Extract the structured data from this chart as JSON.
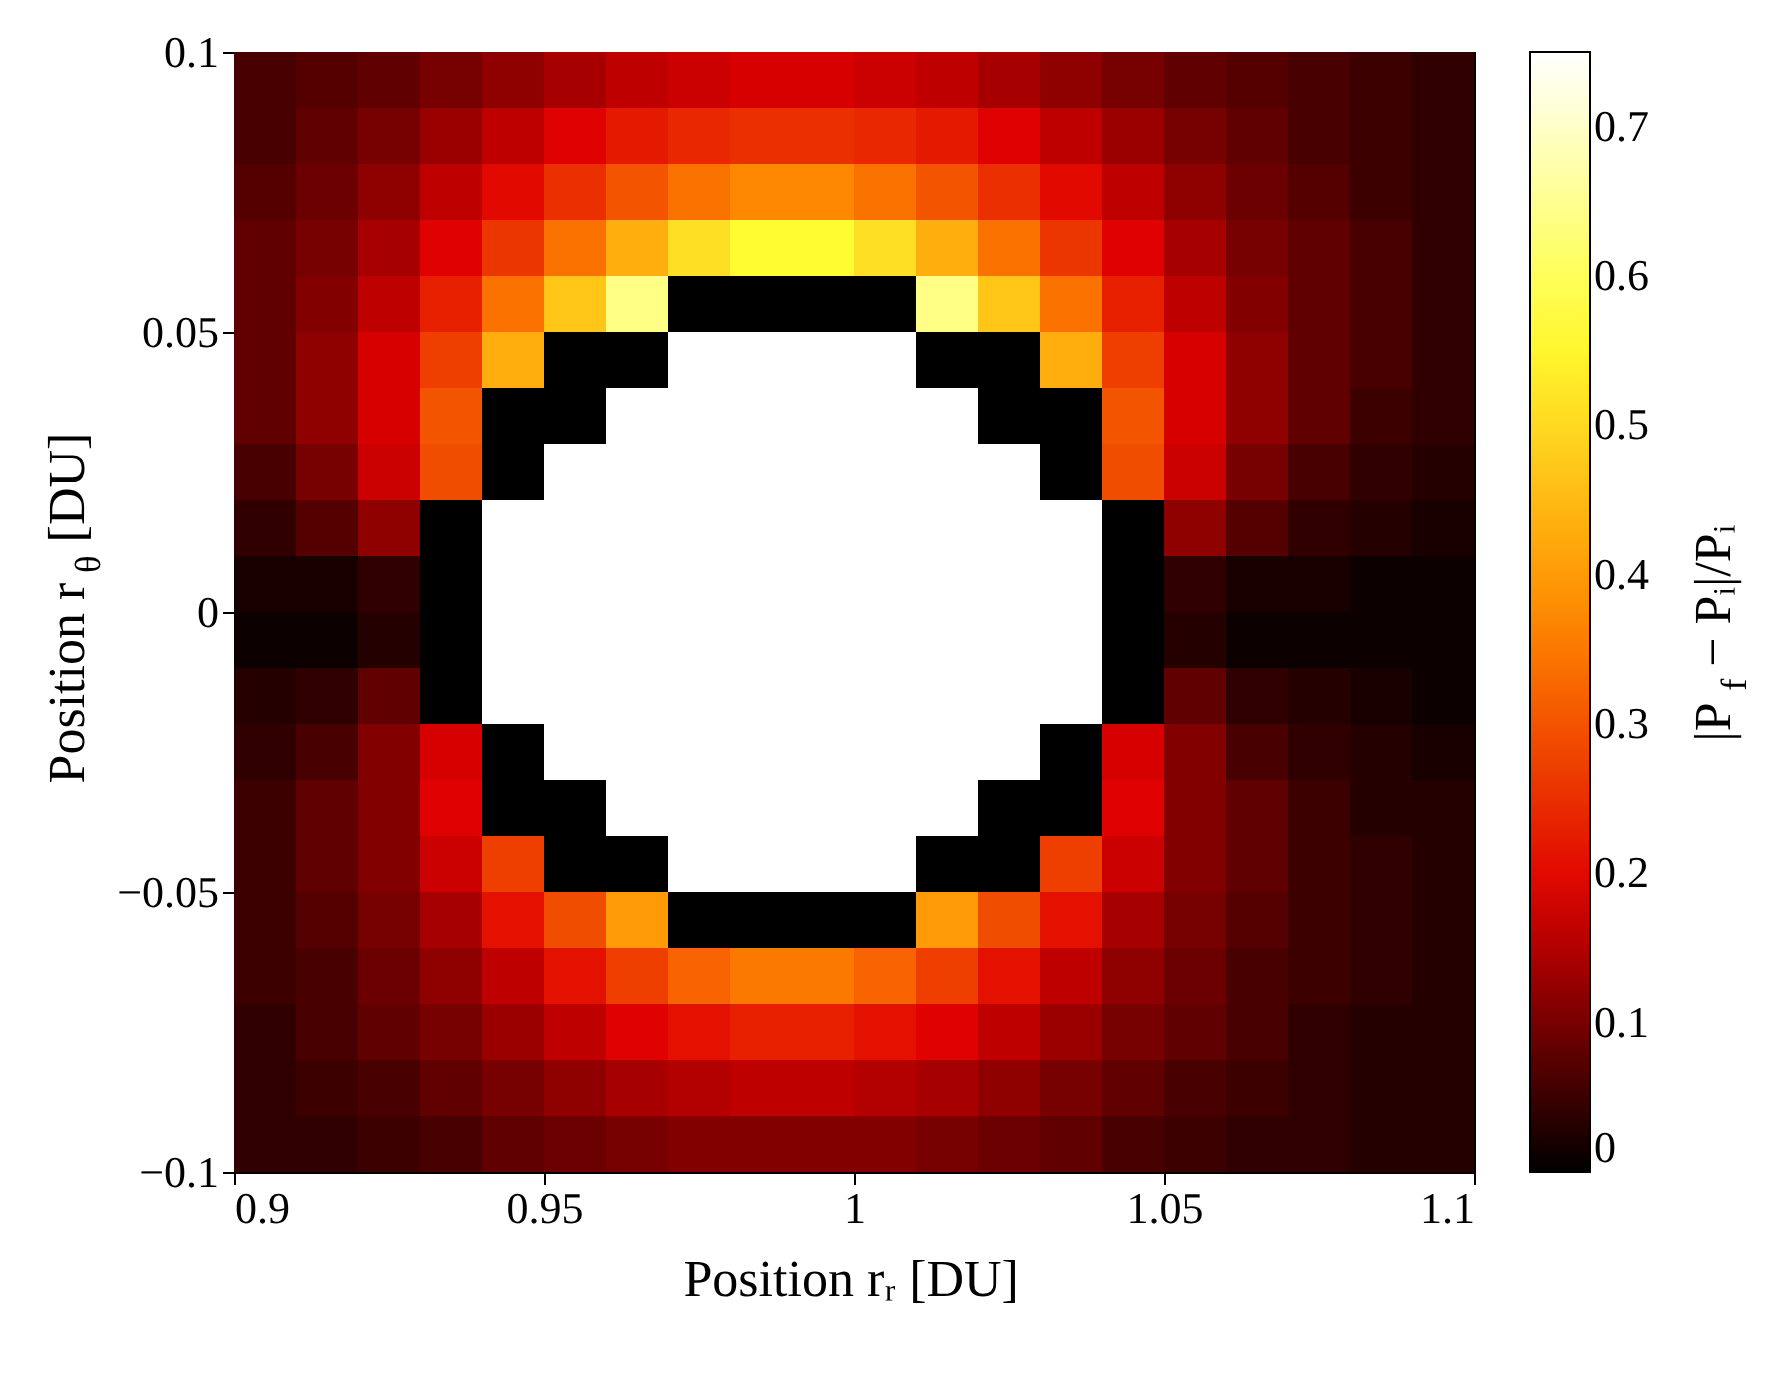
{
  "chart_data": {
    "type": "heatmap",
    "xlabel": "Position rᵣ [DU]",
    "ylabel": "Position r$_{θ}$ [DU]",
    "clabel": "|P$_{f}$ − Pᵢ|/Pᵢ",
    "x": [
      0.905,
      0.915,
      0.925,
      0.935,
      0.945,
      0.955,
      0.965,
      0.975,
      0.985,
      0.995,
      1.005,
      1.015,
      1.025,
      1.035,
      1.045,
      1.055,
      1.065,
      1.075,
      1.085,
      1.095
    ],
    "y": [
      0.095,
      0.085,
      0.075,
      0.065,
      0.055,
      0.045,
      0.035,
      0.025,
      0.015,
      0.005,
      -0.005,
      -0.015,
      -0.025,
      -0.035,
      -0.045,
      -0.055,
      -0.065,
      -0.075,
      -0.085,
      -0.095
    ],
    "cells": [
      [
        0.06,
        0.07,
        0.08,
        0.1,
        0.12,
        0.14,
        0.16,
        0.17,
        0.18,
        0.18,
        0.17,
        0.16,
        0.14,
        0.12,
        0.1,
        0.08,
        0.07,
        0.06,
        0.05,
        0.04
      ],
      [
        0.06,
        0.08,
        0.1,
        0.13,
        0.16,
        0.19,
        0.22,
        0.24,
        0.25,
        0.25,
        0.24,
        0.22,
        0.19,
        0.16,
        0.13,
        0.1,
        0.08,
        0.06,
        0.05,
        0.04
      ],
      [
        0.07,
        0.09,
        0.12,
        0.16,
        0.2,
        0.25,
        0.3,
        0.34,
        0.37,
        0.37,
        0.34,
        0.3,
        0.25,
        0.2,
        0.16,
        0.12,
        0.09,
        0.07,
        0.05,
        0.04
      ],
      [
        0.08,
        0.1,
        0.14,
        0.19,
        0.26,
        0.34,
        0.43,
        0.51,
        0.56,
        0.56,
        0.51,
        0.43,
        0.34,
        0.26,
        0.19,
        0.14,
        0.1,
        0.08,
        0.06,
        0.04
      ],
      [
        0.08,
        0.11,
        0.16,
        0.23,
        0.34,
        0.47,
        0.64,
        0,
        0,
        0,
        0,
        0.64,
        0.47,
        0.34,
        0.23,
        0.16,
        0.11,
        0.08,
        0.06,
        0.04
      ],
      [
        0.08,
        0.12,
        0.18,
        0.27,
        0.43,
        0,
        0,
        null,
        null,
        null,
        null,
        0,
        0,
        0.43,
        0.27,
        0.18,
        0.12,
        0.08,
        0.06,
        0.04
      ],
      [
        0.08,
        0.12,
        0.18,
        0.3,
        0,
        0,
        null,
        null,
        null,
        null,
        null,
        null,
        0,
        0,
        0.3,
        0.18,
        0.12,
        0.08,
        0.05,
        0.04
      ],
      [
        0.06,
        0.1,
        0.17,
        0.29,
        0,
        null,
        null,
        null,
        null,
        null,
        null,
        null,
        null,
        0,
        0.29,
        0.17,
        0.1,
        0.06,
        0.04,
        0.03
      ],
      [
        0.04,
        0.07,
        0.12,
        0,
        null,
        null,
        null,
        null,
        null,
        null,
        null,
        null,
        null,
        null,
        0,
        0.12,
        0.07,
        0.04,
        0.03,
        0.02
      ],
      [
        0.02,
        0.02,
        0.04,
        0,
        null,
        null,
        null,
        null,
        null,
        null,
        null,
        null,
        null,
        null,
        0,
        0.04,
        0.02,
        0.02,
        0.01,
        0.01
      ],
      [
        0.01,
        0.01,
        0.03,
        0,
        null,
        null,
        null,
        null,
        null,
        null,
        null,
        null,
        null,
        null,
        0,
        0.03,
        0.01,
        0.01,
        0.01,
        0.01
      ],
      [
        0.03,
        0.04,
        0.08,
        0,
        null,
        null,
        null,
        null,
        null,
        null,
        null,
        null,
        null,
        null,
        0,
        0.08,
        0.04,
        0.03,
        0.02,
        0.01
      ],
      [
        0.04,
        0.06,
        0.11,
        0.18,
        0,
        null,
        null,
        null,
        null,
        null,
        null,
        null,
        null,
        0,
        0.18,
        0.11,
        0.06,
        0.04,
        0.03,
        0.02
      ],
      [
        0.05,
        0.08,
        0.11,
        0.19,
        0,
        0,
        null,
        null,
        null,
        null,
        null,
        null,
        0,
        0,
        0.19,
        0.11,
        0.08,
        0.05,
        0.03,
        0.03
      ],
      [
        0.05,
        0.08,
        0.11,
        0.17,
        0.27,
        0,
        0,
        null,
        null,
        null,
        null,
        0,
        0,
        0.27,
        0.17,
        0.11,
        0.08,
        0.05,
        0.04,
        0.03
      ],
      [
        0.05,
        0.07,
        0.1,
        0.14,
        0.21,
        0.29,
        0.4,
        0,
        0,
        0,
        0,
        0.4,
        0.29,
        0.21,
        0.14,
        0.1,
        0.07,
        0.05,
        0.04,
        0.03
      ],
      [
        0.05,
        0.06,
        0.09,
        0.12,
        0.16,
        0.21,
        0.27,
        0.32,
        0.35,
        0.35,
        0.32,
        0.27,
        0.21,
        0.16,
        0.12,
        0.09,
        0.06,
        0.05,
        0.04,
        0.03
      ],
      [
        0.04,
        0.06,
        0.08,
        0.1,
        0.13,
        0.16,
        0.19,
        0.21,
        0.23,
        0.23,
        0.21,
        0.19,
        0.16,
        0.13,
        0.1,
        0.08,
        0.06,
        0.04,
        0.03,
        0.03
      ],
      [
        0.04,
        0.05,
        0.06,
        0.08,
        0.1,
        0.12,
        0.14,
        0.15,
        0.16,
        0.16,
        0.15,
        0.14,
        0.12,
        0.1,
        0.08,
        0.06,
        0.05,
        0.04,
        0.03,
        0.03
      ],
      [
        0.04,
        0.04,
        0.05,
        0.06,
        0.08,
        0.09,
        0.1,
        0.11,
        0.11,
        0.11,
        0.11,
        0.1,
        0.09,
        0.08,
        0.06,
        0.05,
        0.04,
        0.04,
        0.03,
        0.03
      ]
    ],
    "xlim": [
      0.9,
      1.1
    ],
    "xticks": [
      0.9,
      0.95,
      1,
      1.05,
      1.1
    ],
    "ylim": [
      -0.1,
      0.1
    ],
    "yticks": [
      -0.1,
      -0.05,
      0,
      0.05,
      0.1
    ],
    "clim": [
      0,
      0.75
    ],
    "cticks": [
      0,
      0.1,
      0.2,
      0.3,
      0.4,
      0.5,
      0.6,
      0.7
    ]
  }
}
